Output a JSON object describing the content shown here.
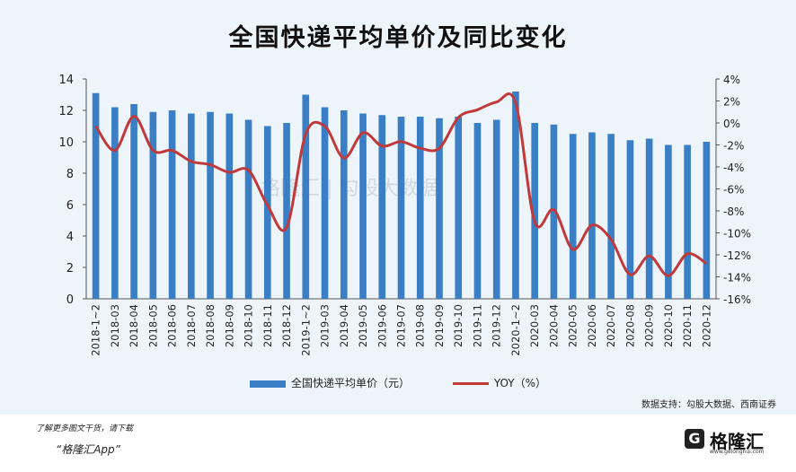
{
  "title": "全国快递平均单价及同比变化",
  "chart_data": {
    "type": "bar",
    "categories": [
      "2018-1~2",
      "2018-03",
      "2018-04",
      "2018-05",
      "2018-06",
      "2018-07",
      "2018-08",
      "2018-09",
      "2018-10",
      "2018-11",
      "2018-12",
      "2019-1~2",
      "2019-03",
      "2019-04",
      "2019-05",
      "2019-06",
      "2019-07",
      "2019-08",
      "2019-09",
      "2019-10",
      "2019-11",
      "2019-12",
      "2020-1~2",
      "2020-03",
      "2020-04",
      "2020-05",
      "2020-06",
      "2020-07",
      "2020-08",
      "2020-09",
      "2020-10",
      "2020-11",
      "2020-12"
    ],
    "series": [
      {
        "name": "全国快递平均单价（元）",
        "type": "bar",
        "axis": "left",
        "color": "#3a7fc6",
        "values": [
          13.1,
          12.2,
          12.4,
          11.9,
          12.0,
          11.8,
          11.9,
          11.8,
          11.4,
          11.0,
          11.2,
          13.0,
          12.2,
          12.0,
          11.8,
          11.7,
          11.6,
          11.6,
          11.5,
          11.6,
          11.2,
          11.4,
          13.2,
          11.2,
          11.1,
          10.5,
          10.6,
          10.5,
          10.1,
          10.2,
          9.8,
          9.8,
          10.0
        ]
      },
      {
        "name": "YOY（%）",
        "type": "line",
        "axis": "right",
        "color": "#c0393b",
        "values": [
          -0.3,
          -2.5,
          0.6,
          -2.5,
          -2.5,
          -3.5,
          -3.8,
          -4.5,
          -4.3,
          -7.5,
          -9.5,
          -1.0,
          -0.3,
          -3.2,
          -0.9,
          -2.1,
          -1.7,
          -2.3,
          -2.3,
          0.5,
          1.2,
          1.9,
          1.8,
          -9.0,
          -7.9,
          -11.5,
          -9.3,
          -10.6,
          -13.8,
          -12.1,
          -13.9,
          -11.9,
          -12.8
        ]
      }
    ],
    "y_left": {
      "min": 0,
      "max": 14,
      "ticks": [
        "0",
        "2",
        "4",
        "6",
        "8",
        "10",
        "12",
        "14"
      ]
    },
    "y_right": {
      "min": -16,
      "max": 4,
      "ticks": [
        "-16%",
        "-14%",
        "-12%",
        "-10%",
        "-8%",
        "-6%",
        "-4%",
        "-2%",
        "0%",
        "2%",
        "4%"
      ]
    },
    "grid": false,
    "legend_position": "bottom"
  },
  "legend": {
    "bar_label": "全国快递平均单价（元）",
    "line_label": "YOY（%）"
  },
  "source": "数据支持：勾股大数据、西南证券",
  "watermark": "格隆汇 | 勾股大数据",
  "promo": {
    "line1": "了解更多图文干货，请下载",
    "line2": "“格隆汇App”"
  },
  "brand": {
    "icon": "G",
    "name": "格隆汇",
    "url": "www.gelonghui.com"
  }
}
